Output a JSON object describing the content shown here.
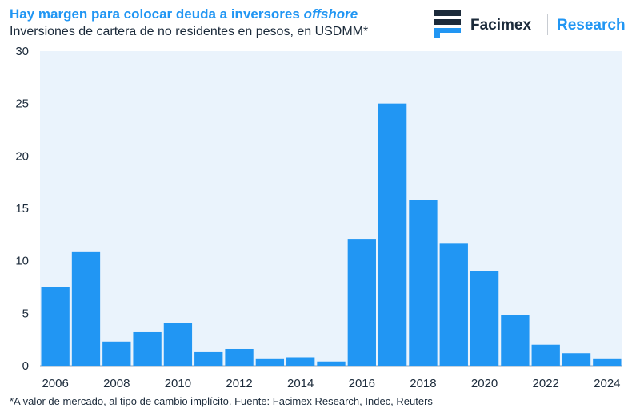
{
  "header": {
    "title_plain": "Hay margen para colocar deuda a inversores ",
    "title_italic": "offshore",
    "subtitle": "Inversiones de cartera de no residentes en pesos, en USDMM*"
  },
  "brand": {
    "logo_icon": "facimex-logo-icon",
    "name": "Facimex",
    "division": "Research"
  },
  "footnote": "*A valor de mercado, al tipo de cambio implícito. Fuente: Facimex Research, Indec, Reuters",
  "colors": {
    "bar": "#2196f3",
    "accent": "#2196f3",
    "text": "#1b2a3a",
    "plot_background": "#eaf3fc"
  },
  "chart_data": {
    "type": "bar",
    "title": "Hay margen para colocar deuda a inversores offshore",
    "xlabel": "",
    "ylabel": "",
    "ylim": [
      0,
      30
    ],
    "yticks": [
      "0",
      "5",
      "10",
      "15",
      "20",
      "25",
      "30"
    ],
    "categories": [
      "2006",
      "2007",
      "2008",
      "2009",
      "2010",
      "2011",
      "2012",
      "2013",
      "2014",
      "2015",
      "2016",
      "2017",
      "2018",
      "2019",
      "2020",
      "2021",
      "2022",
      "2023",
      "2024"
    ],
    "xtick_labels": [
      "2006",
      "",
      "2008",
      "",
      "2010",
      "",
      "2012",
      "",
      "2014",
      "",
      "2016",
      "",
      "2018",
      "",
      "2020",
      "",
      "2022",
      "",
      "2024"
    ],
    "values": [
      7.5,
      10.9,
      2.3,
      3.2,
      4.1,
      1.3,
      1.6,
      0.7,
      0.8,
      0.4,
      12.1,
      25.0,
      15.8,
      11.7,
      9.0,
      4.8,
      2.0,
      1.2,
      0.7
    ],
    "grid": false
  }
}
